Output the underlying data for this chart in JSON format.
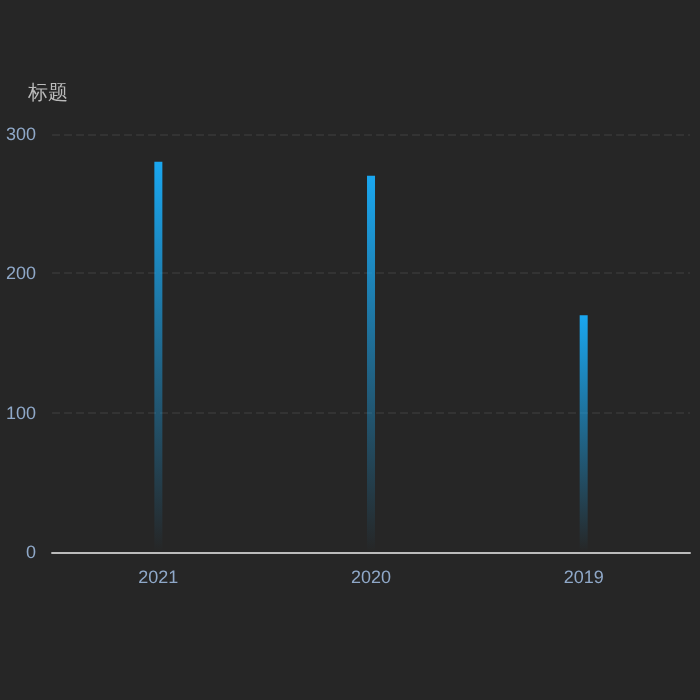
{
  "chart_data": {
    "type": "bar",
    "ylabel": "标题",
    "categories": [
      "2021",
      "2020",
      "2019"
    ],
    "values": [
      280,
      270,
      170
    ],
    "color": "#1aa7f0",
    "ylim": [
      0,
      300
    ],
    "yticks": [
      0,
      100,
      200,
      300
    ],
    "grid": "y"
  }
}
